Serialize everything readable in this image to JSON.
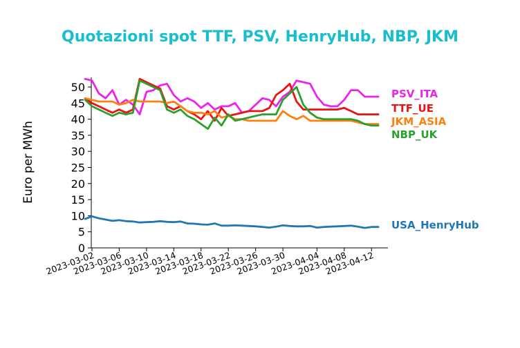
{
  "chart_data": {
    "type": "line",
    "title": "Quotazioni spot TTF, PSV, HenryHub, NBP, JKM",
    "xlabel": "",
    "ylabel": "Euro per MWh",
    "ylim": [
      0,
      53
    ],
    "yticks": [
      0,
      5,
      10,
      15,
      20,
      25,
      30,
      35,
      40,
      45,
      50
    ],
    "xlim": [
      "2023-03-02",
      "2023-04-14"
    ],
    "xticks": [
      "2023-03-02",
      "2023-03-06",
      "2023-03-10",
      "2023-03-14",
      "2023-03-18",
      "2023-03-22",
      "2023-03-26",
      "2023-03-30",
      "2023-04-04",
      "2023-04-08",
      "2023-04-12"
    ],
    "grid": false,
    "legend": "series labels at right end of lines",
    "colors": {
      "title": "#17becf",
      "PSV_ITA": "#ee22ee",
      "TTF_UE": "#ee1111",
      "JKM_ASIA": "#ff7f0e",
      "NBP_UK": "#2ca02c",
      "USA_HenryHub": "#1f77b4"
    },
    "x": [
      "2023-03-01",
      "2023-03-02",
      "2023-03-03",
      "2023-03-04",
      "2023-03-05",
      "2023-03-06",
      "2023-03-07",
      "2023-03-08",
      "2023-03-09",
      "2023-03-10",
      "2023-03-11",
      "2023-03-12",
      "2023-03-13",
      "2023-03-14",
      "2023-03-15",
      "2023-03-16",
      "2023-03-17",
      "2023-03-18",
      "2023-03-19",
      "2023-03-20",
      "2023-03-21",
      "2023-03-22",
      "2023-03-23",
      "2023-03-24",
      "2023-03-25",
      "2023-03-26",
      "2023-03-27",
      "2023-03-28",
      "2023-03-29",
      "2023-03-30",
      "2023-03-31",
      "2023-04-01",
      "2023-04-02",
      "2023-04-03",
      "2023-04-04",
      "2023-04-05",
      "2023-04-06",
      "2023-04-07",
      "2023-04-08",
      "2023-04-09",
      "2023-04-10",
      "2023-04-11",
      "2023-04-12",
      "2023-04-13"
    ],
    "series": [
      {
        "name": "PSV_ITA",
        "values": [
          52.5,
          52.0,
          48.0,
          46.5,
          49.0,
          44.5,
          46.0,
          44.5,
          41.5,
          48.5,
          49.0,
          50.5,
          51.0,
          47.5,
          45.5,
          46.5,
          45.5,
          43.5,
          45.0,
          43.0,
          44.0,
          44.0,
          45.0,
          42.0,
          42.5,
          44.5,
          46.5,
          46.0,
          44.0,
          47.0,
          48.5,
          52.0,
          51.5,
          51.0,
          47.0,
          44.5,
          44.0,
          44.0,
          46.0,
          49.0,
          49.0,
          47.0,
          47.0,
          47.0
        ]
      },
      {
        "name": "TTF_UE",
        "values": [
          46.5,
          45.0,
          44.0,
          43.0,
          42.0,
          43.0,
          42.0,
          43.0,
          52.5,
          51.5,
          50.5,
          49.5,
          44.0,
          43.0,
          44.0,
          42.5,
          41.5,
          40.0,
          42.5,
          39.5,
          43.5,
          41.0,
          41.5,
          42.0,
          42.5,
          42.5,
          42.5,
          43.5,
          47.5,
          49.0,
          51.0,
          45.5,
          43.0,
          43.0,
          43.0,
          43.0,
          43.0,
          43.0,
          43.5,
          42.5,
          41.5,
          41.5,
          41.5,
          41.5
        ]
      },
      {
        "name": "JKM_ASIA",
        "values": [
          46.5,
          46.0,
          45.5,
          45.5,
          45.5,
          44.5,
          45.0,
          46.0,
          45.5,
          45.5,
          45.5,
          45.5,
          45.0,
          45.5,
          44.0,
          42.5,
          42.0,
          42.0,
          41.5,
          42.5,
          40.5,
          41.0,
          40.0,
          40.0,
          39.5,
          39.5,
          39.5,
          39.5,
          39.5,
          42.5,
          41.0,
          40.0,
          41.0,
          39.5,
          39.5,
          39.5,
          39.5,
          39.5,
          39.5,
          39.5,
          39.0,
          38.5,
          38.5,
          38.5
        ]
      },
      {
        "name": "NBP_UK",
        "values": [
          46.0,
          44.0,
          43.0,
          42.0,
          41.0,
          42.0,
          41.5,
          42.0,
          52.0,
          51.0,
          50.0,
          49.0,
          43.0,
          42.0,
          43.0,
          41.0,
          40.0,
          38.5,
          37.0,
          40.5,
          38.0,
          41.5,
          39.5,
          40.0,
          40.5,
          41.0,
          41.5,
          41.5,
          41.5,
          46.0,
          48.0,
          50.0,
          44.5,
          42.0,
          40.5,
          40.0,
          40.0,
          40.0,
          40.0,
          40.0,
          39.5,
          38.5,
          38.0,
          38.0
        ]
      },
      {
        "name": "USA_HenryHub",
        "values": [
          9.0,
          9.8,
          9.2,
          8.8,
          8.4,
          8.6,
          8.3,
          8.2,
          7.9,
          8.0,
          8.1,
          8.3,
          8.1,
          8.0,
          8.2,
          7.6,
          7.5,
          7.3,
          7.2,
          7.6,
          6.9,
          6.9,
          7.0,
          6.9,
          6.8,
          6.7,
          6.5,
          6.3,
          6.6,
          7.0,
          6.8,
          6.7,
          6.7,
          6.8,
          6.3,
          6.5,
          6.6,
          6.7,
          6.8,
          6.9,
          6.6,
          6.2,
          6.5,
          6.5
        ]
      }
    ]
  }
}
